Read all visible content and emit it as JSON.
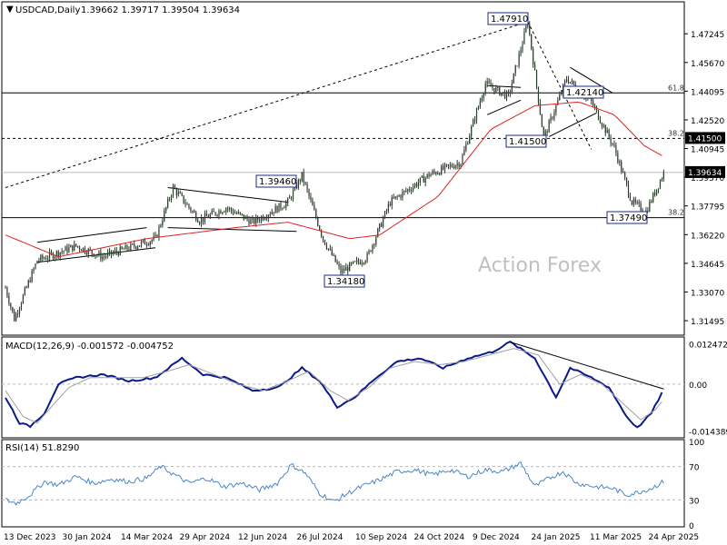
{
  "header": {
    "symbol_label": "USDCAD,Daily",
    "ohlc_label": "1.39662 1.39717 1.39504 1.39634",
    "watermark": "Action Forex"
  },
  "colors": {
    "background": "#ffffff",
    "candles": "#2d3d2d",
    "moving_average": "#dd2222",
    "macd_main": "#0a1a8a",
    "macd_signal": "#a0a0a0",
    "rsi_line": "#4a86c8",
    "watermark": "#c0c0c0"
  },
  "chart_data": [
    {
      "type": "candlestick",
      "title": "USDCAD,Daily",
      "ohlc_last": {
        "open": 1.39662,
        "high": 1.39717,
        "low": 1.39504,
        "close": 1.39634
      },
      "ylim": [
        1.308,
        1.489
      ],
      "y_ticks": [
        "1.47245",
        "1.45670",
        "1.44095",
        "1.42520",
        "1.40945",
        "1.39370",
        "1.37795",
        "1.36220",
        "1.34645",
        "1.33070",
        "1.31495"
      ],
      "x_tick_labels": [
        "13 Dec 2023",
        "30 Jan 2024",
        "14 Mar 2024",
        "29 Apr 2024",
        "12 Jun 2024",
        "26 Jul 2024",
        "10 Sep 2024",
        "24 Oct 2024",
        "9 Dec 2024",
        "24 Jan 2025",
        "11 Mar 2025",
        "24 Apr 2025"
      ],
      "bars": 380,
      "swing_points": [
        [
          0,
          1.333
        ],
        [
          5,
          1.316
        ],
        [
          18,
          1.348
        ],
        [
          40,
          1.356
        ],
        [
          55,
          1.35
        ],
        [
          85,
          1.36
        ],
        [
          95,
          1.388
        ],
        [
          110,
          1.37
        ],
        [
          125,
          1.377
        ],
        [
          140,
          1.369
        ],
        [
          160,
          1.38
        ],
        [
          168,
          1.3946
        ],
        [
          180,
          1.36
        ],
        [
          190,
          1.3418
        ],
        [
          205,
          1.35
        ],
        [
          218,
          1.38
        ],
        [
          240,
          1.395
        ],
        [
          258,
          1.402
        ],
        [
          272,
          1.445
        ],
        [
          285,
          1.438
        ],
        [
          296,
          1.4791
        ],
        [
          305,
          1.415
        ],
        [
          318,
          1.448
        ],
        [
          332,
          1.435
        ],
        [
          345,
          1.41
        ],
        [
          355,
          1.38
        ],
        [
          363,
          1.3749
        ],
        [
          373,
          1.396
        ]
      ],
      "moving_average_points": [
        [
          0,
          1.362
        ],
        [
          30,
          1.35
        ],
        [
          80,
          1.36
        ],
        [
          130,
          1.366
        ],
        [
          160,
          1.369
        ],
        [
          195,
          1.36
        ],
        [
          212,
          1.362
        ],
        [
          245,
          1.383
        ],
        [
          275,
          1.42
        ],
        [
          300,
          1.433
        ],
        [
          325,
          1.435
        ],
        [
          345,
          1.428
        ],
        [
          362,
          1.411
        ],
        [
          373,
          1.405
        ]
      ],
      "price_boxes": [
        {
          "label": "1.47910",
          "value": 1.4791
        },
        {
          "label": "1.39460",
          "value": 1.3946
        },
        {
          "label": "1.34180",
          "value": 1.3418
        },
        {
          "label": "1.41500",
          "value": 1.415
        },
        {
          "label": "1.37490",
          "value": 1.3749
        },
        {
          "label": "1.42140",
          "value": 1.4214
        }
      ],
      "horizontal_levels": [
        {
          "value": 1.415,
          "style": "dotted",
          "fib_label": "38.2",
          "axis_tag": "1.41500"
        },
        {
          "value": 1.44,
          "style": "solid",
          "fib_label": "61.8"
        },
        {
          "value": 1.3715,
          "style": "solid",
          "fib_label": "38.2"
        },
        {
          "value": 1.3963,
          "style": "current",
          "axis_tag": "1.39634"
        }
      ]
    },
    {
      "type": "line",
      "title": "MACD(12,26,9) -0.001572 -0.004752",
      "ylim": [
        -0.016,
        0.014
      ],
      "y_ticks": [
        "0.012472",
        "0.00",
        "-0.014389"
      ],
      "series": [
        {
          "role": "main",
          "points": [
            [
              0,
              -0.004
            ],
            [
              8,
              -0.012
            ],
            [
              14,
              -0.013
            ],
            [
              22,
              -0.009
            ],
            [
              30,
              0.0
            ],
            [
              40,
              0.002
            ],
            [
              55,
              0.003
            ],
            [
              70,
              0.001
            ],
            [
              85,
              0.002
            ],
            [
              100,
              0.008
            ],
            [
              112,
              0.003
            ],
            [
              125,
              0.002
            ],
            [
              140,
              -0.002
            ],
            [
              155,
              -0.001
            ],
            [
              168,
              0.005
            ],
            [
              178,
              0.001
            ],
            [
              188,
              -0.007
            ],
            [
              198,
              -0.004
            ],
            [
              210,
              0.002
            ],
            [
              222,
              0.007
            ],
            [
              235,
              0.008
            ],
            [
              248,
              0.005
            ],
            [
              262,
              0.008
            ],
            [
              276,
              0.01
            ],
            [
              286,
              0.013
            ],
            [
              300,
              0.008
            ],
            [
              312,
              -0.004
            ],
            [
              320,
              0.005
            ],
            [
              332,
              0.002
            ],
            [
              342,
              -0.001
            ],
            [
              352,
              -0.01
            ],
            [
              358,
              -0.0135
            ],
            [
              366,
              -0.009
            ],
            [
              373,
              -0.0016
            ]
          ]
        },
        {
          "role": "signal",
          "points": [
            [
              0,
              -0.002
            ],
            [
              10,
              -0.01
            ],
            [
              18,
              -0.012
            ],
            [
              26,
              -0.007
            ],
            [
              36,
              -0.001
            ],
            [
              48,
              0.002
            ],
            [
              62,
              0.002
            ],
            [
              78,
              0.002
            ],
            [
              92,
              0.004
            ],
            [
              104,
              0.006
            ],
            [
              118,
              0.003
            ],
            [
              132,
              0.0
            ],
            [
              146,
              -0.002
            ],
            [
              160,
              0.001
            ],
            [
              172,
              0.004
            ],
            [
              184,
              -0.002
            ],
            [
              194,
              -0.005
            ],
            [
              206,
              -0.001
            ],
            [
              218,
              0.005
            ],
            [
              232,
              0.007
            ],
            [
              246,
              0.006
            ],
            [
              260,
              0.007
            ],
            [
              274,
              0.009
            ],
            [
              288,
              0.011
            ],
            [
              302,
              0.009
            ],
            [
              314,
              0.0
            ],
            [
              326,
              0.003
            ],
            [
              338,
              0.0
            ],
            [
              350,
              -0.006
            ],
            [
              360,
              -0.011
            ],
            [
              368,
              -0.008
            ],
            [
              373,
              -0.0048
            ]
          ]
        }
      ],
      "trendline": [
        [
          286,
          0.013
        ],
        [
          373,
          -0.0015
        ]
      ]
    },
    {
      "type": "line",
      "title": "RSI(14) 51.8290",
      "ylim": [
        0,
        100
      ],
      "y_ticks": [
        "100",
        "70",
        "30",
        "0"
      ],
      "levels": [
        70,
        30
      ],
      "series": [
        {
          "role": "rsi",
          "points": [
            [
              0,
              30
            ],
            [
              6,
              26
            ],
            [
              14,
              36
            ],
            [
              22,
              52
            ],
            [
              30,
              48
            ],
            [
              40,
              58
            ],
            [
              50,
              50
            ],
            [
              60,
              55
            ],
            [
              70,
              52
            ],
            [
              80,
              56
            ],
            [
              88,
              70
            ],
            [
              96,
              60
            ],
            [
              104,
              50
            ],
            [
              114,
              56
            ],
            [
              124,
              46
            ],
            [
              134,
              50
            ],
            [
              144,
              42
            ],
            [
              154,
              50
            ],
            [
              162,
              72
            ],
            [
              170,
              62
            ],
            [
              178,
              38
            ],
            [
              186,
              28
            ],
            [
              194,
              38
            ],
            [
              202,
              46
            ],
            [
              212,
              54
            ],
            [
              222,
              64
            ],
            [
              232,
              66
            ],
            [
              242,
              60
            ],
            [
              252,
              66
            ],
            [
              262,
              58
            ],
            [
              272,
              66
            ],
            [
              282,
              64
            ],
            [
              292,
              74
            ],
            [
              300,
              46
            ],
            [
              308,
              56
            ],
            [
              316,
              64
            ],
            [
              324,
              50
            ],
            [
              334,
              46
            ],
            [
              344,
              44
            ],
            [
              352,
              36
            ],
            [
              360,
              40
            ],
            [
              366,
              44
            ],
            [
              373,
              52
            ]
          ]
        }
      ]
    }
  ]
}
